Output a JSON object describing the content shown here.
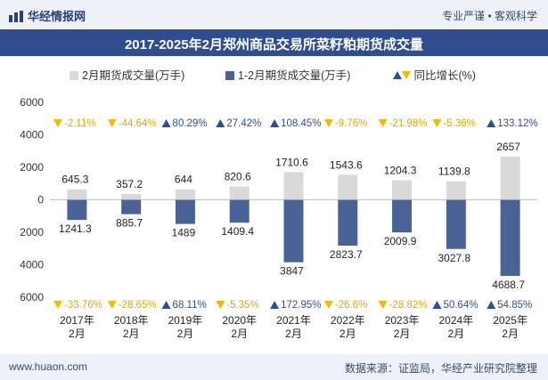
{
  "header": {
    "brand": "华经情报网",
    "tagline": "专业严谨 • 客观科学",
    "title": "2017-2025年2月郑州商品交易所菜籽粕期货成交量"
  },
  "footer": {
    "site": "www.huaon.com",
    "source": "数据来源：证监局，华经产业研究院整理"
  },
  "colors": {
    "top_bar": "#eef1f8",
    "title_bar": "#2f4d8f",
    "monthly_bar": "#d9d9d9",
    "cumulative_bar": "#4a6396",
    "up_marker": "#2f4d8f",
    "down_marker": "#f5b800"
  },
  "chart_data": {
    "type": "bar",
    "categories": [
      "2017年\n2月",
      "2018年\n2月",
      "2019年\n2月",
      "2020年\n2月",
      "2021年\n2月",
      "2022年\n2月",
      "2023年\n2月",
      "2024年\n2月",
      "2025年\n2月"
    ],
    "legend": [
      "2月期货成交量(万手)",
      "1-2月期货成交量(万手)",
      "同比增长(%)"
    ],
    "series": [
      {
        "name": "2月期货成交量(万手)",
        "values": [
          645.3,
          357.2,
          644,
          820.6,
          1710.6,
          1543.6,
          1204.3,
          1139.8,
          2657
        ],
        "direction": "up"
      },
      {
        "name": "1-2月期货成交量(万手)",
        "values": [
          1241.3,
          885.7,
          1489,
          1409.4,
          3847,
          2823.7,
          2009.9,
          3027.8,
          4688.7
        ],
        "direction": "down"
      }
    ],
    "growth_monthly": [
      "-2.11%",
      "-44.64%",
      "80.29%",
      "27.42%",
      "108.45%",
      "-9.76%",
      "-21.98%",
      "-5.36%",
      "133.12%"
    ],
    "growth_cumulative": [
      "-33.76%",
      "-28.65%",
      "68.11%",
      "-5.35%",
      "172.95%",
      "-26.6%",
      "-28.82%",
      "50.64%",
      "54.85%"
    ],
    "y_ticks": [
      "6000",
      "4000",
      "2000",
      "0",
      "2000",
      "4000",
      "6000"
    ],
    "ylim": [
      -6000,
      6000
    ],
    "title": "2017-2025年2月郑州商品交易所菜籽粕期货成交量",
    "xlabel": "",
    "ylabel": ""
  }
}
